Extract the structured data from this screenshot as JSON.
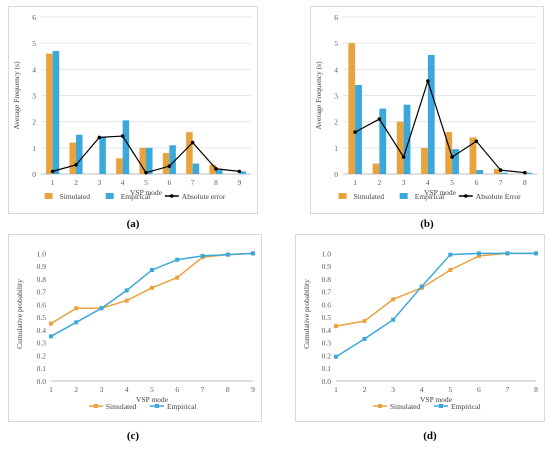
{
  "colors": {
    "simulated": "#E8A33D",
    "empirical": "#3AA8DB",
    "abs_error": "#000000",
    "grid": "#e6e6e6",
    "axis": "#bfbfbf",
    "tick": "#595959"
  },
  "captions": [
    "(a)",
    "(b)",
    "(c)",
    "(d)"
  ],
  "chart_data": [
    {
      "type": "bar",
      "xlabel": "VSP mode",
      "ylabel": "Average Frequency (s)",
      "categories": [
        "1",
        "2",
        "3",
        "4",
        "5",
        "6",
        "7",
        "8",
        "9"
      ],
      "ylim": [
        0,
        6
      ],
      "yticks": [
        "0",
        "1",
        "2",
        "3",
        "4",
        "5",
        "6"
      ],
      "series": [
        {
          "name": "Simulated",
          "values": [
            4.6,
            1.2,
            0.0,
            0.6,
            1.0,
            0.8,
            1.6,
            0.35,
            0.0
          ]
        },
        {
          "name": "Empirical",
          "values": [
            4.7,
            1.5,
            1.4,
            2.05,
            1.0,
            1.1,
            0.4,
            0.15,
            0.1
          ]
        }
      ],
      "line_series": {
        "name": "Absolute error",
        "values": [
          0.1,
          0.35,
          1.4,
          1.45,
          0.05,
          0.3,
          1.2,
          0.2,
          0.1
        ]
      },
      "legend": "bottom",
      "grid": true
    },
    {
      "type": "bar",
      "xlabel": "VSP mode",
      "ylabel": "Average Frequency (s)",
      "categories": [
        "1",
        "2",
        "3",
        "4",
        "5",
        "6",
        "7",
        "8"
      ],
      "ylim": [
        0,
        6
      ],
      "yticks": [
        "0",
        "1",
        "2",
        "3",
        "4",
        "5",
        "6"
      ],
      "series": [
        {
          "name": "Simulated",
          "values": [
            5.0,
            0.4,
            2.0,
            1.0,
            1.6,
            1.4,
            0.2,
            0.0
          ]
        },
        {
          "name": "Empirical",
          "values": [
            3.4,
            2.5,
            2.65,
            4.55,
            0.95,
            0.15,
            0.05,
            0.05
          ]
        }
      ],
      "line_series": {
        "name": "Absolute Error",
        "values": [
          1.6,
          2.1,
          0.65,
          3.55,
          0.65,
          1.25,
          0.15,
          0.05
        ]
      },
      "legend": "bottom",
      "grid": true
    },
    {
      "type": "line",
      "xlabel": "VSP mode",
      "ylabel": "Cumulative probability",
      "categories": [
        "1",
        "2",
        "3",
        "4",
        "5",
        "6",
        "7",
        "8",
        "9"
      ],
      "ylim": [
        0,
        1.05
      ],
      "yticks": [
        "0.0",
        "0.1",
        "0.2",
        "0.3",
        "0.4",
        "0.5",
        "0.6",
        "0.7",
        "0.8",
        "0.9",
        "1.0"
      ],
      "series": [
        {
          "name": "Simulated",
          "values": [
            0.45,
            0.57,
            0.57,
            0.63,
            0.73,
            0.81,
            0.97,
            0.99,
            1.0
          ]
        },
        {
          "name": "Empirical",
          "values": [
            0.35,
            0.46,
            0.57,
            0.71,
            0.87,
            0.95,
            0.98,
            0.99,
            1.0
          ]
        }
      ],
      "legend": "bottom",
      "grid": false
    },
    {
      "type": "line",
      "xlabel": "VSP mode",
      "ylabel": "Cumulative probability",
      "categories": [
        "1",
        "2",
        "3",
        "4",
        "5",
        "6",
        "7",
        "8"
      ],
      "ylim": [
        0,
        1.05
      ],
      "yticks": [
        "0.0",
        "0.1",
        "0.2",
        "0.3",
        "0.4",
        "0.5",
        "0.6",
        "0.7",
        "0.8",
        "0.9",
        "1.0"
      ],
      "series": [
        {
          "name": "Simulated",
          "values": [
            0.43,
            0.47,
            0.64,
            0.73,
            0.87,
            0.98,
            1.0,
            1.0
          ]
        },
        {
          "name": "Empirical",
          "values": [
            0.19,
            0.33,
            0.48,
            0.74,
            0.99,
            1.0,
            1.0,
            1.0
          ]
        }
      ],
      "legend": "bottom",
      "grid": false
    }
  ]
}
